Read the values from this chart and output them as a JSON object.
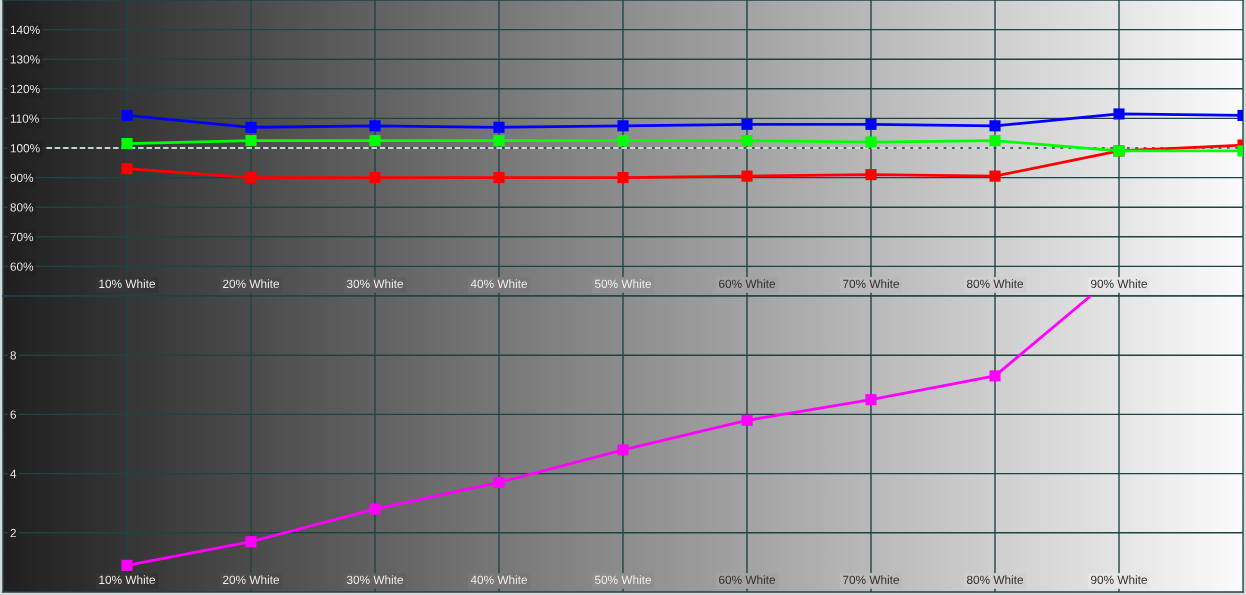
{
  "chart_data": [
    {
      "type": "line",
      "x": [
        10,
        20,
        30,
        40,
        50,
        60,
        70,
        80,
        90,
        100
      ],
      "xlim": [
        0,
        100
      ],
      "xticks": [
        {
          "value": 10,
          "label": "10% White"
        },
        {
          "value": 20,
          "label": "20% White"
        },
        {
          "value": 30,
          "label": "30% White"
        },
        {
          "value": 40,
          "label": "40% White"
        },
        {
          "value": 50,
          "label": "50% White"
        },
        {
          "value": 60,
          "label": "60% White"
        },
        {
          "value": 70,
          "label": "70% White"
        },
        {
          "value": 80,
          "label": "80% White"
        },
        {
          "value": 90,
          "label": "90% White"
        }
      ],
      "ylim": [
        50,
        150
      ],
      "yticks": [
        {
          "value": 60,
          "label": "60%"
        },
        {
          "value": 70,
          "label": "70%"
        },
        {
          "value": 80,
          "label": "80%"
        },
        {
          "value": 90,
          "label": "90%"
        },
        {
          "value": 100,
          "label": "100%"
        },
        {
          "value": 110,
          "label": "110%"
        },
        {
          "value": 120,
          "label": "120%"
        },
        {
          "value": 130,
          "label": "130%"
        },
        {
          "value": 140,
          "label": "140%"
        }
      ],
      "grid": true,
      "marker": "square",
      "line_style": "solid",
      "ref_lines": [
        {
          "axis": "y",
          "value": 100,
          "color": "#ffffff",
          "line_style": "dashed"
        }
      ],
      "series": [
        {
          "color": "#ff0000",
          "values": [
            93,
            90,
            90,
            90,
            90,
            90.5,
            91,
            90.5,
            99,
            101
          ]
        },
        {
          "color": "#00ff00",
          "values": [
            101.5,
            102.5,
            102.5,
            102.5,
            102.5,
            102.5,
            102,
            102.5,
            99,
            99
          ]
        },
        {
          "color": "#0000ff",
          "values": [
            111,
            107,
            107.5,
            107,
            107.5,
            108,
            108,
            107.5,
            111.5,
            111
          ]
        }
      ]
    },
    {
      "type": "line",
      "x": [
        10,
        20,
        30,
        40,
        50,
        60,
        70,
        80
      ],
      "xlim": [
        0,
        100
      ],
      "xticks": [
        {
          "value": 10,
          "label": "10% White"
        },
        {
          "value": 20,
          "label": "20% White"
        },
        {
          "value": 30,
          "label": "30% White"
        },
        {
          "value": 40,
          "label": "40% White"
        },
        {
          "value": 50,
          "label": "50% White"
        },
        {
          "value": 60,
          "label": "60% White"
        },
        {
          "value": 70,
          "label": "70% White"
        },
        {
          "value": 80,
          "label": "80% White"
        },
        {
          "value": 90,
          "label": "90% White"
        }
      ],
      "ylim": [
        0,
        10
      ],
      "yticks": [
        2,
        4,
        6,
        8
      ],
      "grid": true,
      "marker": "square",
      "line_style": "solid",
      "series": [
        {
          "color": "#ff00ff",
          "values": [
            0.9,
            1.7,
            2.8,
            3.7,
            4.8,
            5.8,
            6.5,
            7.3
          ]
        },
        {
          "color": "#ff00ff",
          "x": [
            80,
            87.7
          ],
          "values": [
            7.3,
            10
          ],
          "marker": "none"
        }
      ]
    }
  ]
}
